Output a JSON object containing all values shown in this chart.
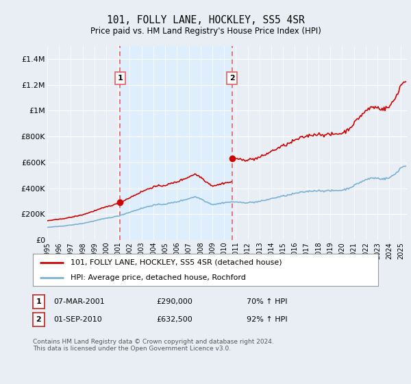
{
  "title": "101, FOLLY LANE, HOCKLEY, SS5 4SR",
  "subtitle": "Price paid vs. HM Land Registry's House Price Index (HPI)",
  "legend_line1": "101, FOLLY LANE, HOCKLEY, SS5 4SR (detached house)",
  "legend_line2": "HPI: Average price, detached house, Rochford",
  "sale1_date_str": "07-MAR-2001",
  "sale1_price_str": "£290,000",
  "sale1_hpi_str": "70% ↑ HPI",
  "sale2_date_str": "01-SEP-2010",
  "sale2_price_str": "£632,500",
  "sale2_hpi_str": "92% ↑ HPI",
  "footnote": "Contains HM Land Registry data © Crown copyright and database right 2024.\nThis data is licensed under the Open Government Licence v3.0.",
  "sale1_year": 2001.18,
  "sale1_value": 290000,
  "sale2_year": 2010.67,
  "sale2_value": 632500,
  "hpi_color": "#7ab0d4",
  "price_color": "#cc0000",
  "vline_color": "#e06060",
  "shade_color": "#ddeeff",
  "grid_color": "#d0d8e4",
  "bg_color": "#e8eef4",
  "ylim_max": 1500000,
  "xlim_start": 1995.0,
  "xlim_end": 2025.5
}
